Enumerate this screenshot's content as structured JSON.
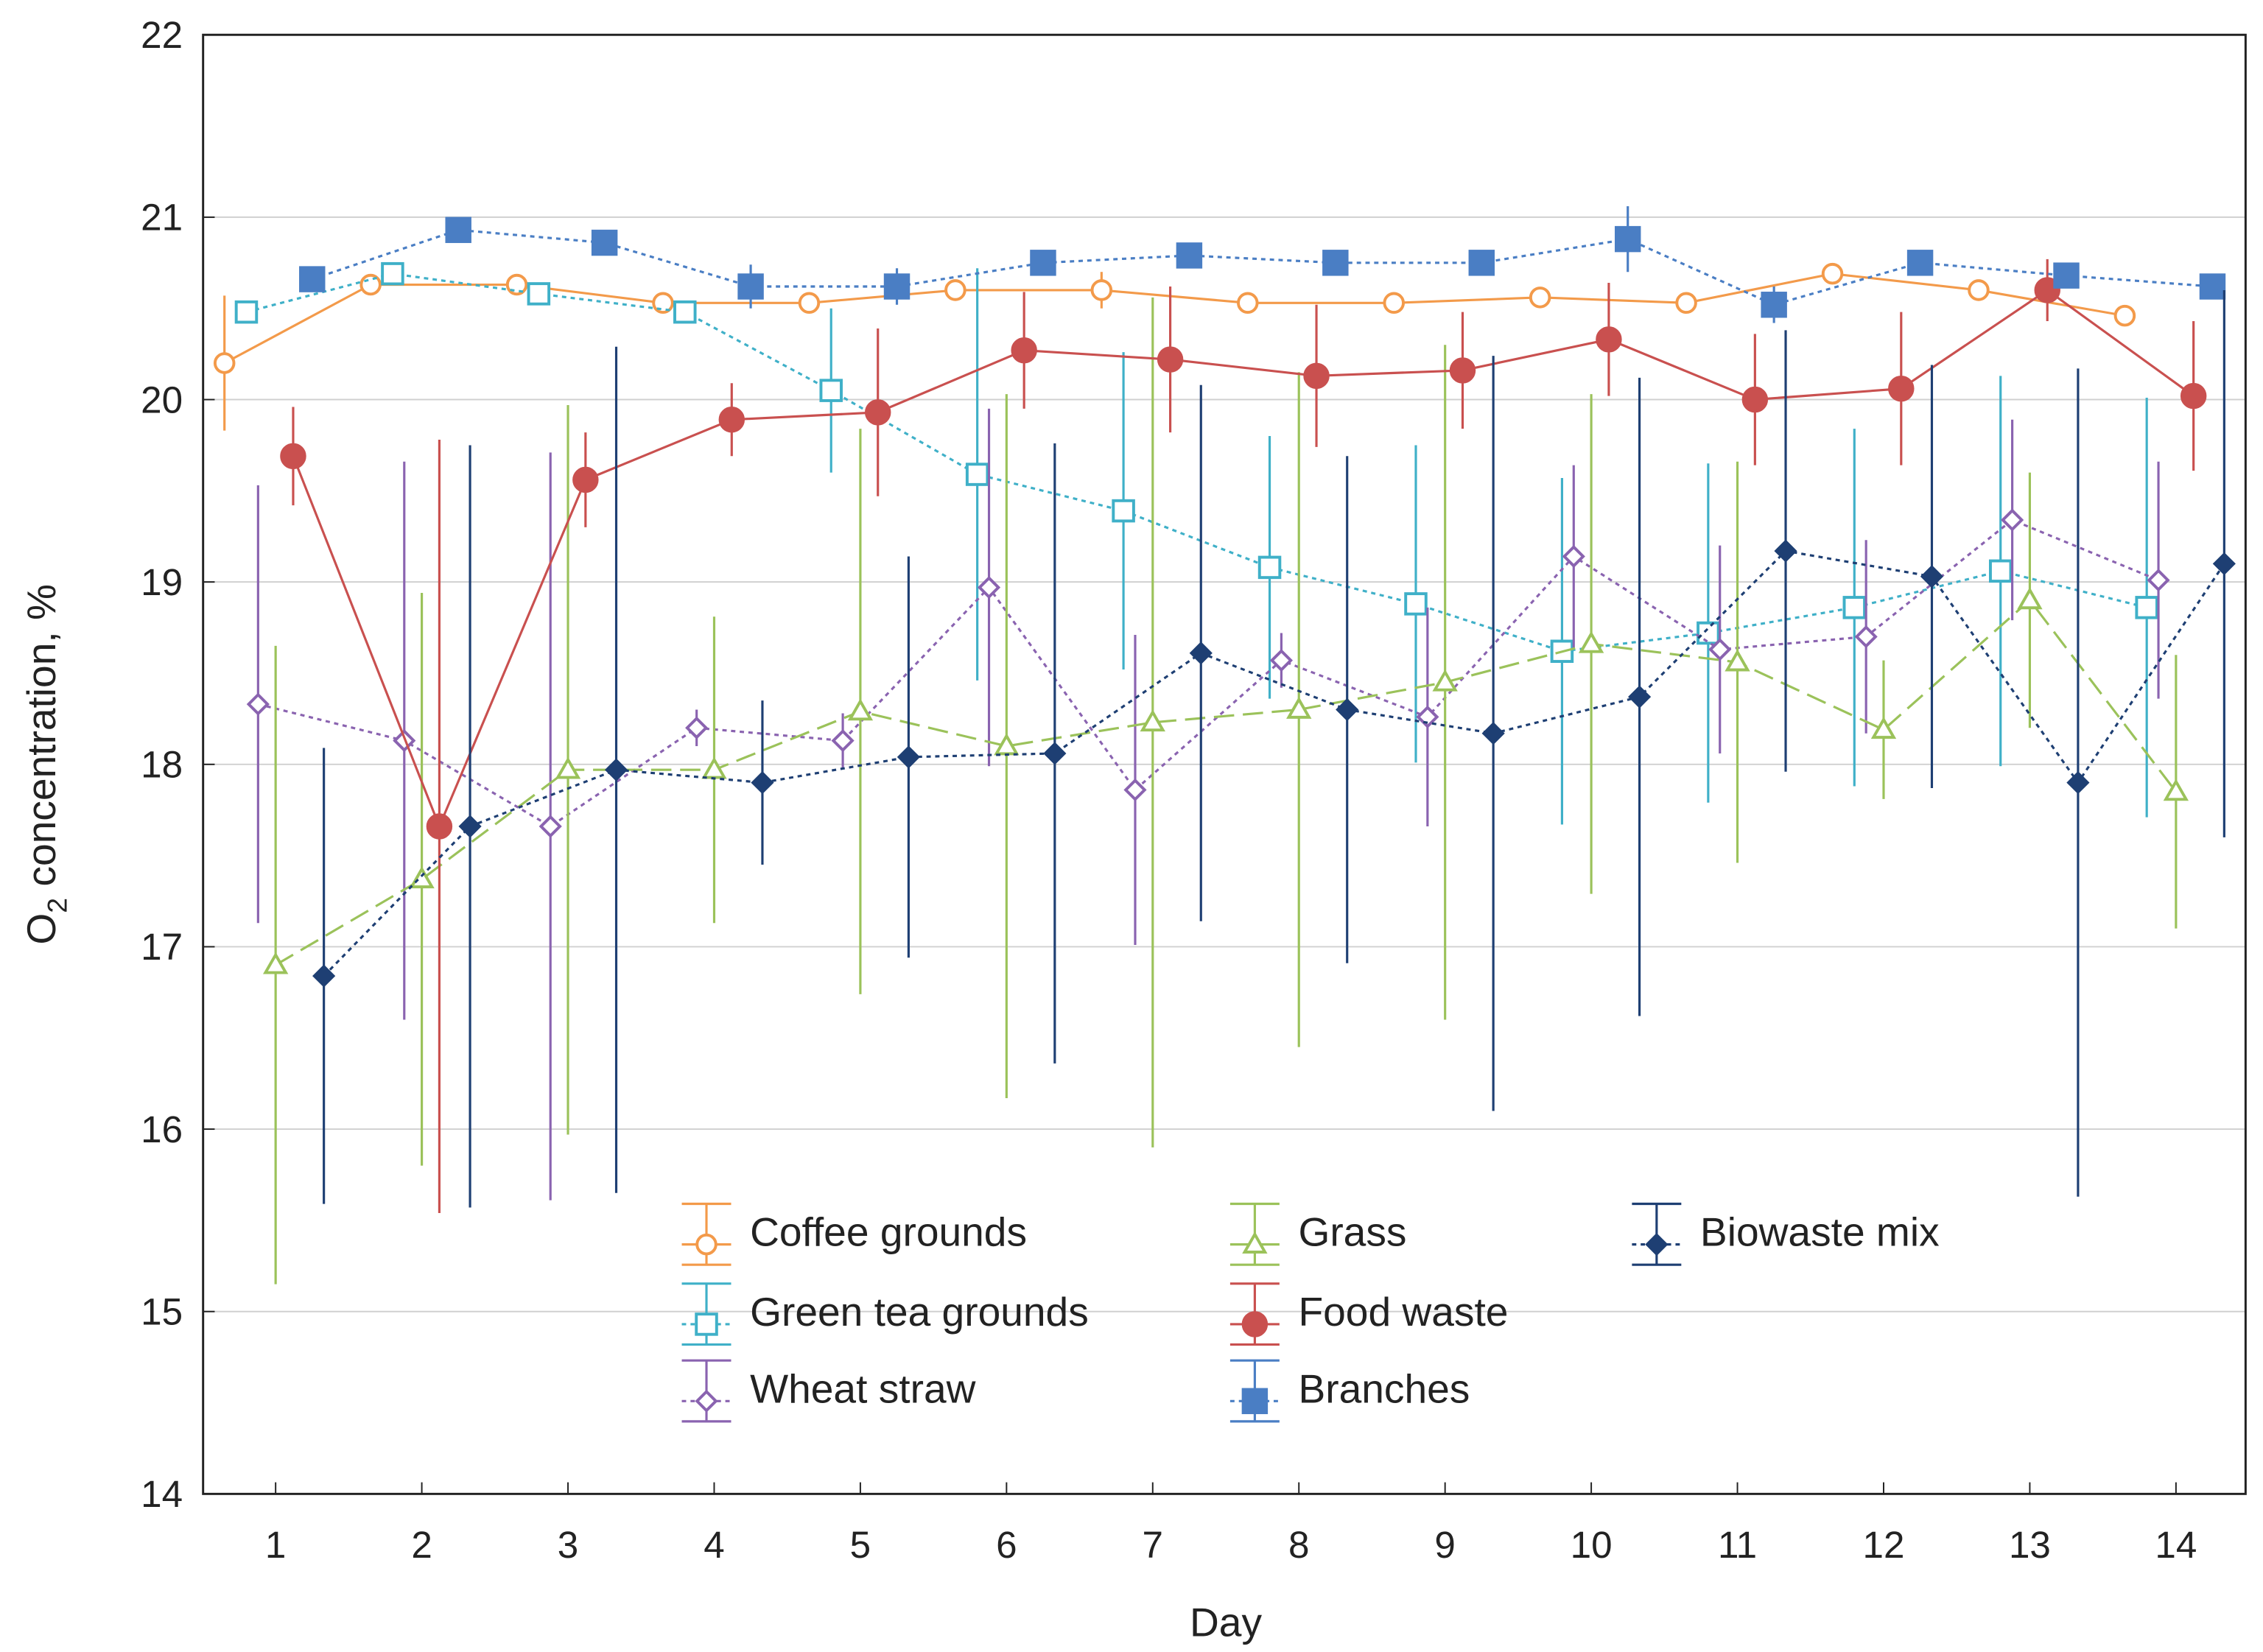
{
  "chart_data": {
    "type": "line",
    "title": "",
    "xlabel": "Day",
    "ylabel_main": "O",
    "ylabel_sub": "2",
    "ylabel_rest": " concentration, %",
    "xlim": [
      0.5,
      14.5
    ],
    "ylim": [
      14,
      22
    ],
    "x": [
      1,
      2,
      3,
      4,
      5,
      6,
      7,
      8,
      9,
      10,
      11,
      12,
      13,
      14
    ],
    "x_tick_labels": [
      "1",
      "2",
      "3",
      "4",
      "5",
      "6",
      "7",
      "8",
      "9",
      "10",
      "11",
      "12",
      "13",
      "14"
    ],
    "y_ticks": [
      14,
      15,
      16,
      17,
      18,
      19,
      20,
      21,
      22
    ],
    "y_tick_labels": [
      "14",
      "15",
      "16",
      "17",
      "18",
      "19",
      "20",
      "21",
      "22"
    ],
    "grid": "horizontal",
    "legend_placement": "bottom-center",
    "series": [
      {
        "name": "Coffee grounds",
        "color": "#f39a4a",
        "marker": "circle-open",
        "line": "solid",
        "offset": -0.35,
        "values": [
          20.2,
          20.63,
          20.63,
          20.53,
          20.53,
          20.6,
          20.6,
          20.53,
          20.53,
          20.56,
          20.53,
          20.69,
          20.6,
          20.46
        ],
        "errors": [
          0.37,
          0.05,
          0.05,
          0.05,
          0.04,
          0.05,
          0.1,
          0.04,
          0.04,
          0.05,
          0.04,
          0.05,
          0.05,
          0.04
        ]
      },
      {
        "name": "Green tea grounds",
        "color": "#3fb0c8",
        "marker": "square-open",
        "line": "dotted",
        "offset": -0.2,
        "values": [
          20.48,
          20.69,
          20.58,
          20.48,
          20.05,
          19.59,
          19.39,
          19.08,
          18.88,
          18.62,
          18.72,
          18.86,
          19.06,
          18.86
        ],
        "errors": [
          0.05,
          0.05,
          0.05,
          0.05,
          0.45,
          1.13,
          0.87,
          0.72,
          0.87,
          0.95,
          0.93,
          0.98,
          1.07,
          1.15
        ]
      },
      {
        "name": "Wheat straw",
        "color": "#8a63b0",
        "marker": "diamond-open",
        "line": "dotted",
        "offset": -0.12,
        "values": [
          18.33,
          18.13,
          17.66,
          18.2,
          18.13,
          18.97,
          17.86,
          18.57,
          18.26,
          19.14,
          18.63,
          18.7,
          19.34,
          19.01
        ],
        "errors": [
          1.2,
          1.53,
          2.05,
          0.1,
          0.15,
          0.98,
          0.85,
          0.15,
          0.6,
          0.5,
          0.57,
          0.53,
          0.55,
          0.65
        ]
      },
      {
        "name": "Grass",
        "color": "#9bc25a",
        "marker": "triangle-open",
        "line": "dashed",
        "offset": 0,
        "values": [
          16.9,
          17.37,
          17.97,
          17.97,
          18.29,
          18.1,
          18.23,
          18.3,
          18.45,
          18.66,
          18.56,
          18.19,
          18.9,
          17.85
        ],
        "errors": [
          1.75,
          1.57,
          2.0,
          0.84,
          1.55,
          1.93,
          2.33,
          1.85,
          1.85,
          1.37,
          1.1,
          0.38,
          0.7,
          0.75
        ]
      },
      {
        "name": "Food waste",
        "color": "#c9504f",
        "marker": "circle-filled",
        "line": "solid",
        "offset": 0.12,
        "values": [
          19.69,
          17.66,
          19.56,
          19.89,
          19.93,
          20.27,
          20.22,
          20.13,
          20.16,
          20.33,
          20.0,
          20.06,
          20.6,
          20.02
        ],
        "errors": [
          0.27,
          2.12,
          0.26,
          0.2,
          0.46,
          0.32,
          0.4,
          0.39,
          0.32,
          0.31,
          0.36,
          0.42,
          0.17,
          0.41
        ]
      },
      {
        "name": "Branches",
        "color": "#4a7ec4",
        "marker": "square-filled",
        "line": "dotted",
        "offset": 0.25,
        "values": [
          20.66,
          20.93,
          20.86,
          20.62,
          20.62,
          20.75,
          20.79,
          20.75,
          20.75,
          20.88,
          20.52,
          20.75,
          20.68,
          20.62
        ],
        "errors": [
          0.05,
          0.05,
          0.05,
          0.12,
          0.1,
          0.05,
          0.05,
          0.05,
          0.05,
          0.18,
          0.1,
          0.05,
          0.05,
          0.05
        ]
      },
      {
        "name": "Biowaste mix",
        "color": "#1e3f73",
        "marker": "diamond-filled",
        "line": "dotted",
        "offset": 0.33,
        "values": [
          16.84,
          17.66,
          17.97,
          17.9,
          18.04,
          18.06,
          18.61,
          18.3,
          18.17,
          18.37,
          19.17,
          19.03,
          17.9,
          19.1
        ],
        "errors": [
          1.25,
          2.09,
          2.32,
          0.45,
          1.1,
          1.7,
          1.47,
          1.39,
          2.07,
          1.75,
          1.21,
          1.16,
          2.27,
          1.5
        ]
      }
    ]
  }
}
